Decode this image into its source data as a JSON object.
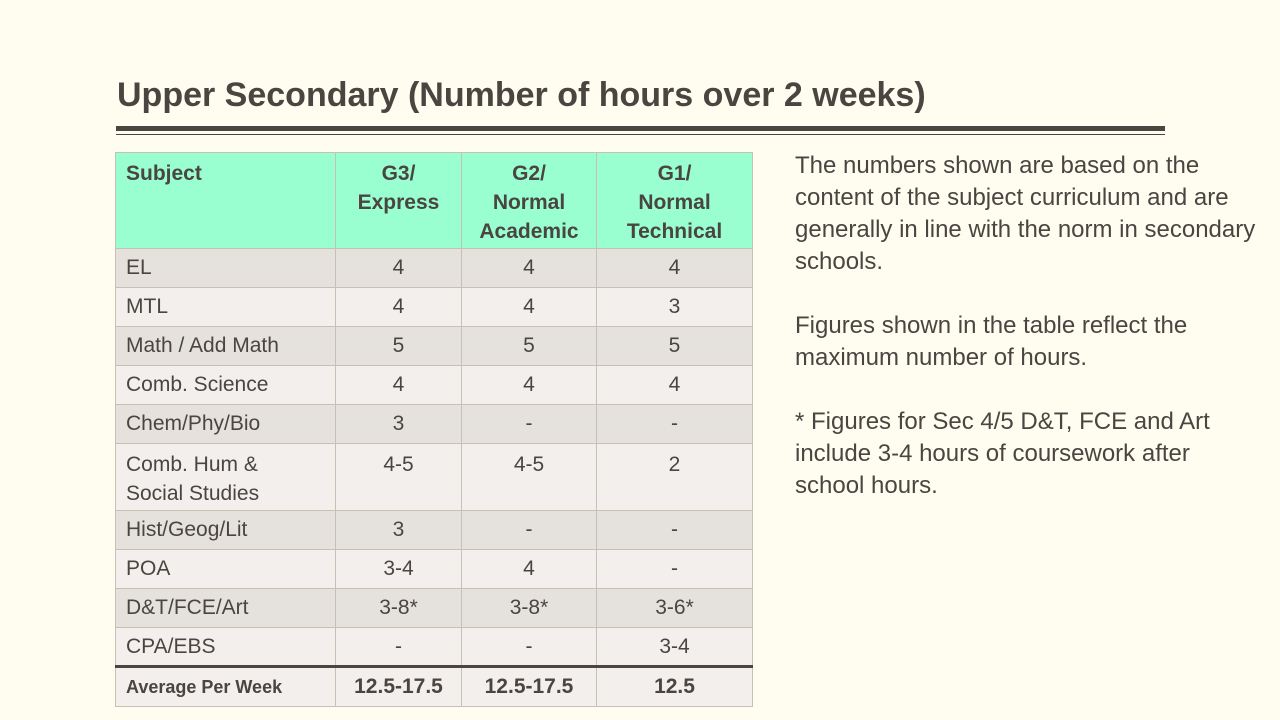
{
  "title": "Upper Secondary (Number of hours over 2 weeks)",
  "table": {
    "headers": [
      [
        "Subject"
      ],
      [
        "G3/",
        "Express"
      ],
      [
        "G2/",
        "Normal",
        "Academic"
      ],
      [
        "G1/",
        "Normal",
        "Technical"
      ]
    ],
    "rows": [
      {
        "subject": [
          "EL"
        ],
        "g3": "4",
        "g2": "4",
        "g1": "4"
      },
      {
        "subject": [
          "MTL"
        ],
        "g3": "4",
        "g2": "4",
        "g1": "3"
      },
      {
        "subject": [
          "Math / Add Math"
        ],
        "g3": "5",
        "g2": "5",
        "g1": "5"
      },
      {
        "subject": [
          "Comb. Science"
        ],
        "g3": "4",
        "g2": "4",
        "g1": "4"
      },
      {
        "subject": [
          "Chem/Phy/Bio"
        ],
        "g3": "3",
        "g2": "-",
        "g1": "-"
      },
      {
        "subject": [
          "Comb. Hum &",
          "Social Studies"
        ],
        "g3": "4-5",
        "g2": "4-5",
        "g1": "2"
      },
      {
        "subject": [
          "Hist/Geog/Lit"
        ],
        "g3": "3",
        "g2": "-",
        "g1": "-"
      },
      {
        "subject": [
          "POA"
        ],
        "g3": "3-4",
        "g2": "4",
        "g1": "-"
      },
      {
        "subject": [
          "D&T/FCE/Art"
        ],
        "g3": "3-8*",
        "g2": "3-8*",
        "g1": "3-6*"
      },
      {
        "subject": [
          "CPA/EBS"
        ],
        "g3": "-",
        "g2": "-",
        "g1": "3-4"
      }
    ],
    "footer": {
      "subject": "Average Per Week",
      "g3": "12.5-17.5",
      "g2": "12.5-17.5",
      "g1": "12.5"
    }
  },
  "notes": [
    "The numbers shown are based on the content of the subject curriculum and are generally in line with the norm in secondary schools.",
    "Figures shown in the table reflect the maximum number of hours.",
    "* Figures for Sec 4/5 D&T, FCE and Art include 3-4 hours of coursework after school hours."
  ],
  "colors": {
    "background": "#fefdf0",
    "header": "#99ffd0",
    "row_odd": "#e5e1dc",
    "row_even": "#f3efed",
    "text": "#4a4541"
  }
}
